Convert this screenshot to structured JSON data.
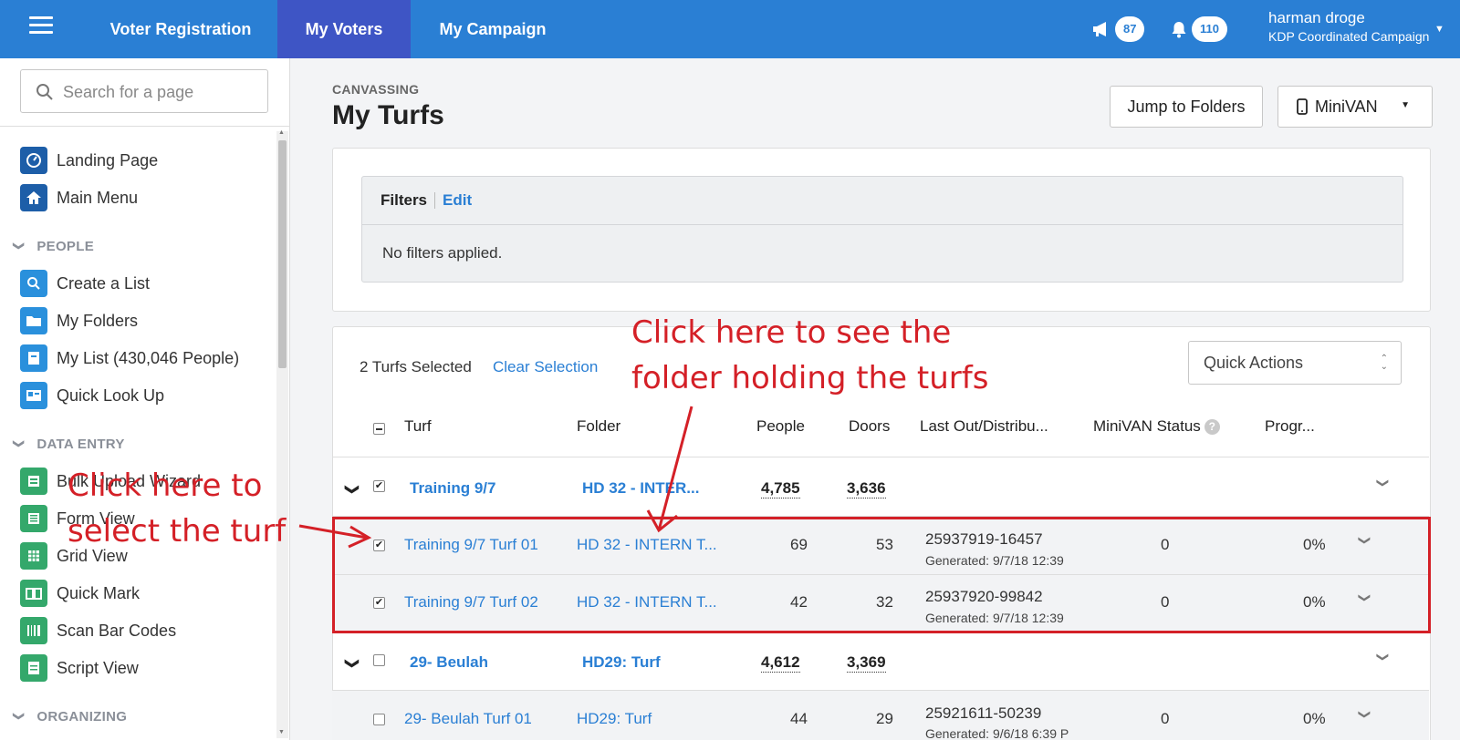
{
  "topbar": {
    "tabs": [
      {
        "label": "Voter Registration"
      },
      {
        "label": "My Voters"
      },
      {
        "label": "My Campaign"
      }
    ],
    "announcements_count": "87",
    "notifications_count": "110",
    "user_name": "harman droge",
    "user_org": "KDP Coordinated Campaign"
  },
  "sidebar": {
    "search_placeholder": "Search for a page",
    "top_items": [
      {
        "label": "Landing Page",
        "icon": "dashboard-icon"
      },
      {
        "label": "Main Menu",
        "icon": "home-icon"
      }
    ],
    "sections": [
      {
        "title": "PEOPLE",
        "items": [
          {
            "label": "Create a List",
            "icon": "search-icon"
          },
          {
            "label": "My Folders",
            "icon": "folder-icon"
          },
          {
            "label": "My List (430,046 People)",
            "icon": "list-icon"
          },
          {
            "label": "Quick Look Up",
            "icon": "id-card-icon"
          }
        ]
      },
      {
        "title": "DATA ENTRY",
        "items": [
          {
            "label": "Bulk Upload Wizard",
            "icon": "upload-icon"
          },
          {
            "label": "Form View",
            "icon": "form-icon"
          },
          {
            "label": "Grid View",
            "icon": "grid-icon"
          },
          {
            "label": "Quick Mark",
            "icon": "book-icon"
          },
          {
            "label": "Scan Bar Codes",
            "icon": "barcode-icon"
          },
          {
            "label": "Script View",
            "icon": "script-icon"
          }
        ]
      },
      {
        "title": "ORGANIZING",
        "items": []
      }
    ]
  },
  "main": {
    "breadcrumb": "CANVASSING",
    "title": "My Turfs",
    "jump_button": "Jump to Folders",
    "minivan_button": "MiniVAN",
    "filters": {
      "label": "Filters",
      "edit": "Edit",
      "body": "No filters applied."
    },
    "selection": {
      "count_text": "2 Turfs Selected",
      "clear": "Clear Selection"
    },
    "quick_actions": "Quick Actions",
    "columns": [
      "Turf",
      "Folder",
      "People",
      "Doors",
      "Last Out/Distribu...",
      "MiniVAN Status",
      "Progr..."
    ],
    "groups": [
      {
        "name": "Training 9/7",
        "folder": "HD 32 - INTER...",
        "people": "4,785",
        "doors": "3,636",
        "checked": true
      },
      {
        "name": "29- Beulah",
        "folder": "HD29: Turf",
        "people": "4,612",
        "doors": "3,369",
        "checked": false
      }
    ],
    "rows": [
      {
        "turf": "Training 9/7 Turf 01",
        "folder": "HD 32 - INTERN T...",
        "people": "69",
        "doors": "53",
        "last_out": "25937919-16457",
        "generated": "Generated: 9/7/18 12:39",
        "minivan": "0",
        "progress": "0%",
        "checked": true
      },
      {
        "turf": "Training 9/7 Turf 02",
        "folder": "HD 32 - INTERN T...",
        "people": "42",
        "doors": "32",
        "last_out": "25937920-99842",
        "generated": "Generated: 9/7/18 12:39",
        "minivan": "0",
        "progress": "0%",
        "checked": true
      },
      {
        "turf": "29- Beulah Turf 01",
        "folder": "HD29: Turf",
        "people": "44",
        "doors": "29",
        "last_out": "25921611-50239",
        "generated": "Generated: 9/6/18 6:39 P",
        "minivan": "0",
        "progress": "0%",
        "checked": false
      }
    ]
  },
  "annotations": {
    "folder_line1": "Click here to see the",
    "folder_line2": "folder holding the turfs",
    "select_line1": "Click here to",
    "select_line2": "select the turf",
    "color": "#d42027"
  },
  "colors": {
    "topbar": "#2a7fd4",
    "active_tab": "#3e55c5",
    "link": "#2a7fd4"
  }
}
